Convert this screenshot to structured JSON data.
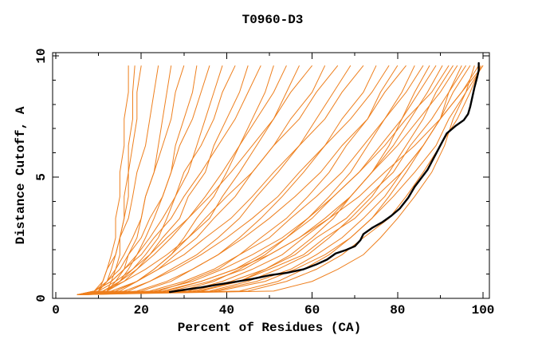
{
  "title": "T0960-D3",
  "chart_data": {
    "type": "line",
    "title": "T0960-D3",
    "xlabel": "Percent of Residues (CA)",
    "ylabel": "Distance Cutoff, A",
    "xlim": [
      0,
      100
    ],
    "ylim": [
      0,
      10
    ],
    "grid": false,
    "legend": false,
    "x_major_ticks": [
      0,
      20,
      40,
      60,
      80,
      100
    ],
    "x_minor_ticks": [
      10,
      30,
      50,
      70,
      90
    ],
    "y_major_ticks": [
      0,
      5,
      10
    ],
    "y_minor_ticks": [
      1,
      2,
      3,
      4,
      6,
      7,
      8,
      9
    ],
    "colors": {
      "model_lines": "#ee7f1d",
      "highlight_line": "#000000",
      "axis": "#000000",
      "background": "#ffffff"
    },
    "cutoffs": [
      0.15,
      0.3,
      0.7,
      1.2,
      1.8,
      2.5,
      3.3,
      4.2,
      5.2,
      6.3,
      7.4,
      8.5,
      9.6
    ],
    "model_curves_percent_at_cutoff": [
      [
        5,
        10,
        11,
        12,
        13,
        14,
        14,
        15,
        15,
        16,
        16,
        17,
        17
      ],
      [
        5,
        12,
        13,
        14,
        15,
        15,
        16,
        16,
        17,
        17,
        18,
        18,
        18.5
      ],
      [
        5,
        10,
        12,
        13,
        14,
        15,
        16,
        17,
        17,
        18,
        19,
        19,
        20
      ],
      [
        5,
        9,
        11,
        12,
        14,
        15,
        17,
        18,
        19,
        21,
        22,
        23,
        24
      ],
      [
        5,
        12,
        14,
        16,
        17,
        19,
        20,
        21,
        23,
        24,
        25,
        26,
        27
      ],
      [
        5,
        9,
        12,
        14,
        16,
        18,
        20,
        21,
        23,
        25,
        27,
        28,
        30
      ],
      [
        5,
        12,
        15,
        17,
        19,
        21,
        23,
        25,
        27,
        28,
        30,
        32,
        33
      ],
      [
        5,
        10,
        12,
        15,
        17,
        20,
        22,
        25,
        27,
        29,
        32,
        34,
        36
      ],
      [
        5,
        12,
        15,
        18,
        21,
        24,
        26,
        28,
        31,
        33,
        35,
        37,
        39
      ],
      [
        5,
        9,
        13,
        16,
        19,
        22,
        25,
        28,
        30,
        34,
        37,
        39,
        42
      ],
      [
        5,
        12,
        16,
        19,
        22,
        25,
        29,
        31,
        35,
        37,
        40,
        43,
        45
      ],
      [
        5,
        9,
        13,
        16,
        20,
        23,
        27,
        30,
        34,
        38,
        42,
        45,
        48
      ],
      [
        5,
        15,
        19,
        23,
        27,
        30,
        33,
        37,
        40,
        43,
        46,
        49,
        51
      ],
      [
        5,
        11,
        15,
        19,
        23,
        27,
        31,
        35,
        39,
        43,
        47,
        51,
        54
      ],
      [
        5,
        14,
        19,
        23,
        27,
        31,
        36,
        39,
        43,
        47,
        51,
        54,
        57
      ],
      [
        5,
        10,
        14,
        18,
        22,
        26,
        31,
        36,
        41,
        46,
        51,
        55,
        60
      ],
      [
        5,
        14,
        19,
        24,
        28,
        33,
        37,
        42,
        46,
        51,
        55,
        60,
        63
      ],
      [
        5,
        11,
        16,
        21,
        26,
        31,
        35,
        40,
        46,
        51,
        57,
        61,
        66
      ],
      [
        5,
        17,
        22,
        27,
        33,
        38,
        43,
        47,
        52,
        57,
        61,
        65,
        69
      ],
      [
        5,
        13,
        19,
        24,
        30,
        35,
        41,
        46,
        51,
        57,
        63,
        67,
        72
      ],
      [
        5,
        20,
        27,
        32,
        38,
        43,
        48,
        53,
        58,
        63,
        67,
        72,
        75
      ],
      [
        5,
        16,
        22,
        28,
        34,
        40,
        46,
        52,
        57,
        63,
        69,
        74,
        78
      ],
      [
        5,
        24,
        31,
        38,
        43,
        48,
        54,
        59,
        64,
        68,
        73,
        76,
        80
      ],
      [
        5,
        19,
        26,
        32,
        38,
        44,
        50,
        56,
        62,
        67,
        73,
        77,
        82
      ],
      [
        5,
        29,
        37,
        43,
        49,
        54,
        59,
        64,
        69,
        73,
        77,
        81,
        84
      ],
      [
        5,
        22,
        30,
        37,
        43,
        50,
        55,
        61,
        67,
        72,
        77,
        82,
        86
      ],
      [
        5,
        34,
        43,
        49,
        55,
        60,
        65,
        69,
        74,
        78,
        81,
        84,
        87.5
      ],
      [
        5,
        26,
        34,
        42,
        48,
        54,
        60,
        65,
        71,
        76,
        81,
        85,
        89
      ],
      [
        5,
        31,
        39,
        46,
        53,
        58,
        64,
        69,
        74,
        79,
        83,
        87,
        90.5
      ],
      [
        5,
        23,
        32,
        39,
        46,
        53,
        59,
        65,
        71,
        77,
        82,
        88,
        92
      ],
      [
        5,
        36,
        45,
        52,
        59,
        64,
        69,
        74,
        78,
        82,
        86,
        89,
        93
      ],
      [
        5,
        27,
        36,
        44,
        50,
        57,
        63,
        69,
        74,
        80,
        85,
        90,
        94
      ],
      [
        5,
        43,
        52,
        58,
        64,
        69,
        74,
        78,
        82,
        86,
        90,
        92,
        95
      ],
      [
        5,
        32,
        41,
        49,
        56,
        61,
        68,
        73,
        79,
        83,
        88,
        92,
        96
      ],
      [
        5,
        37,
        47,
        55,
        61,
        67,
        72,
        77,
        81,
        86,
        90,
        93,
        97
      ],
      [
        5,
        51,
        60,
        66,
        72,
        76,
        80,
        84,
        88,
        91,
        93,
        96,
        98
      ],
      [
        5,
        33,
        43,
        50,
        58,
        63,
        70,
        75,
        81,
        86,
        90,
        95,
        99
      ],
      [
        5,
        45,
        54,
        61,
        67,
        72,
        78,
        82,
        86,
        90,
        94,
        97,
        99.5
      ],
      [
        5,
        38,
        49,
        56,
        63,
        69,
        74,
        79,
        84,
        89,
        92,
        96,
        100
      ],
      [
        5,
        25,
        34,
        42,
        50,
        57,
        64,
        71,
        77,
        84,
        90,
        95,
        100
      ]
    ],
    "highlight_curve_points": [
      [
        26.7,
        0.26
      ],
      [
        30,
        0.35
      ],
      [
        34,
        0.45
      ],
      [
        38,
        0.57
      ],
      [
        42,
        0.68
      ],
      [
        46,
        0.8
      ],
      [
        50,
        0.95
      ],
      [
        54,
        1.05
      ],
      [
        58,
        1.2
      ],
      [
        61,
        1.4
      ],
      [
        63.5,
        1.6
      ],
      [
        65.5,
        1.85
      ],
      [
        68,
        2.0
      ],
      [
        70,
        2.15
      ],
      [
        71.3,
        2.4
      ],
      [
        72,
        2.65
      ],
      [
        74,
        2.9
      ],
      [
        76.5,
        3.15
      ],
      [
        78.5,
        3.4
      ],
      [
        80.5,
        3.7
      ],
      [
        82.5,
        4.15
      ],
      [
        84,
        4.6
      ],
      [
        85.5,
        4.95
      ],
      [
        87,
        5.3
      ],
      [
        88.5,
        5.8
      ],
      [
        90,
        6.3
      ],
      [
        91.5,
        6.8
      ],
      [
        93.5,
        7.1
      ],
      [
        95.5,
        7.35
      ],
      [
        96.5,
        7.6
      ],
      [
        97,
        7.9
      ],
      [
        97.5,
        8.3
      ],
      [
        98,
        8.7
      ],
      [
        98.6,
        9.1
      ],
      [
        99,
        9.4
      ],
      [
        99,
        9.7
      ]
    ]
  }
}
